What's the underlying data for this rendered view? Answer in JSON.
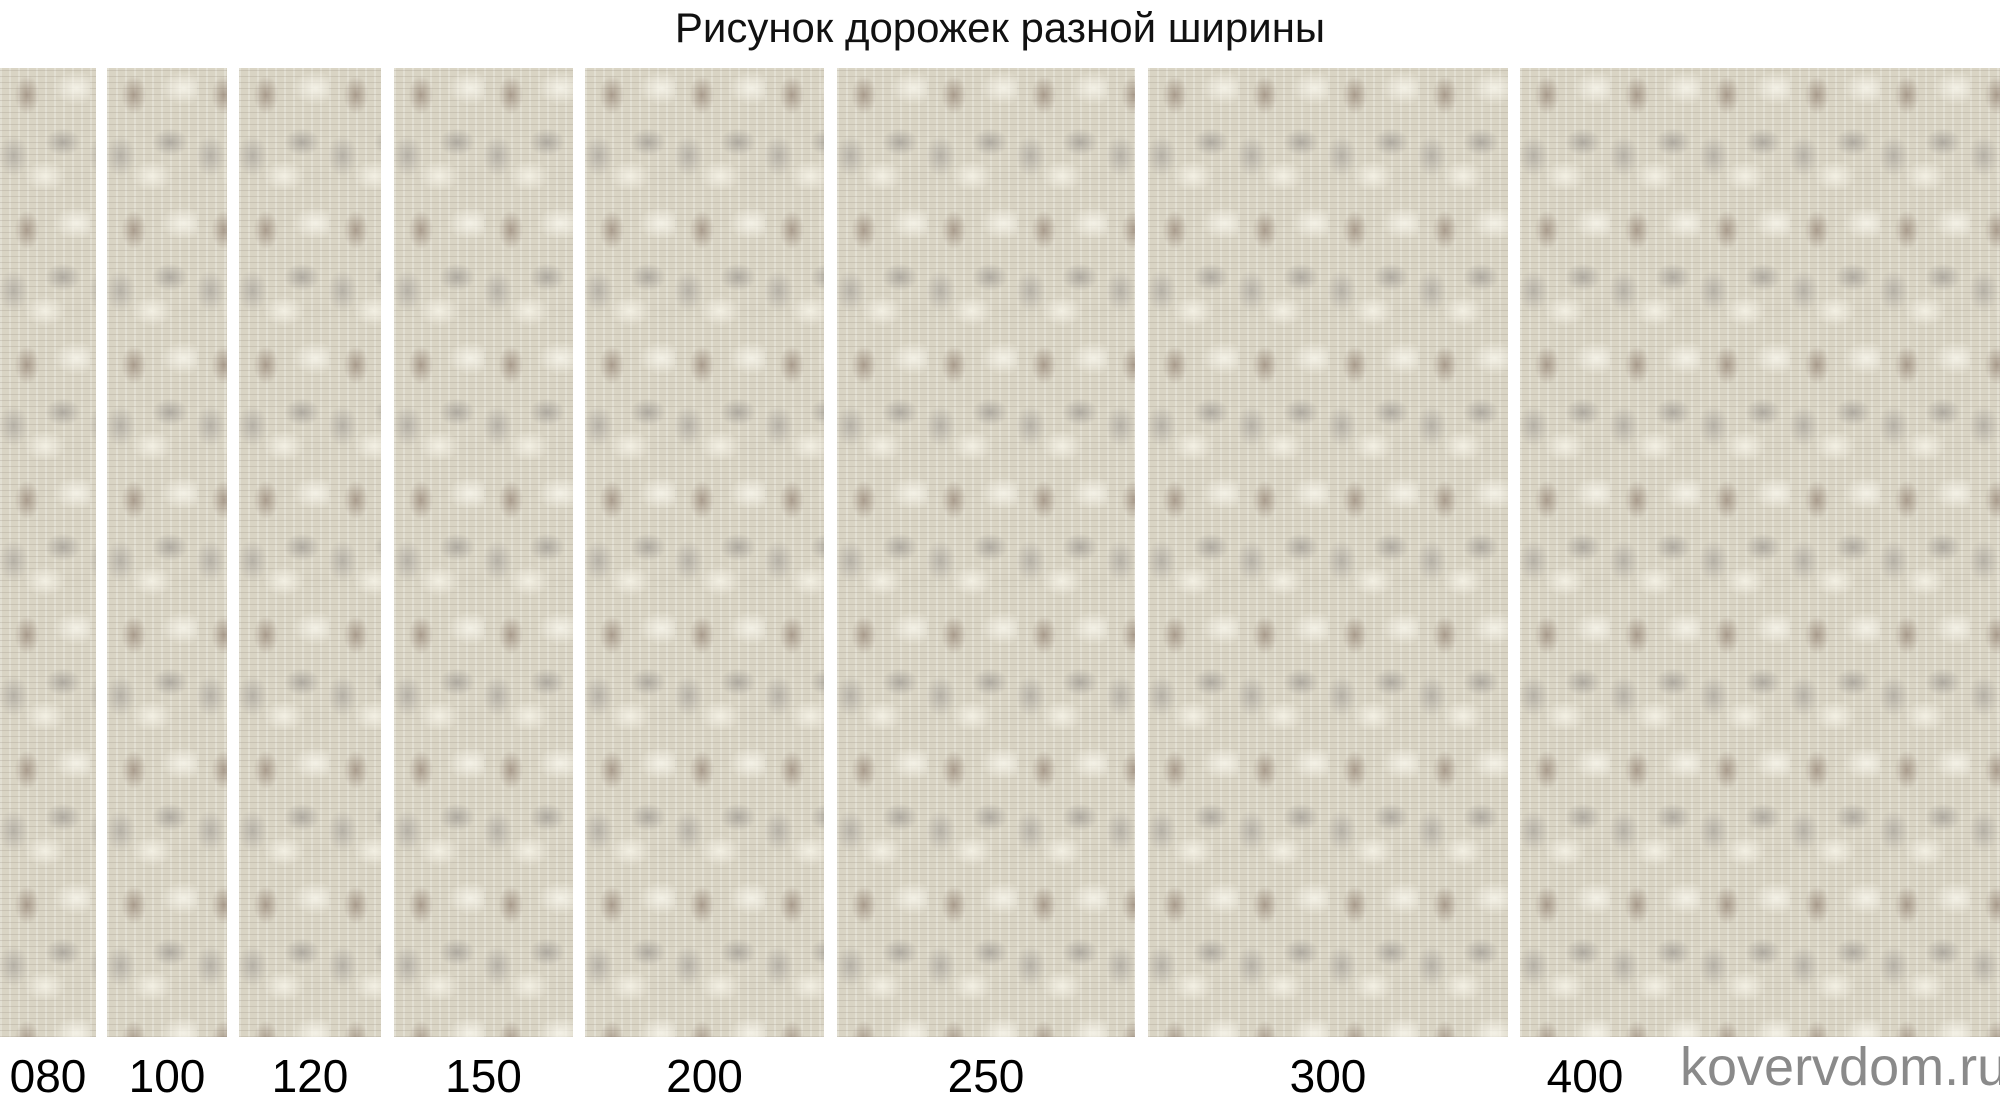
{
  "title": "Рисунок дорожек разной ширины",
  "panels": [
    {
      "label": "080"
    },
    {
      "label": "100"
    },
    {
      "label": "120"
    },
    {
      "label": "150"
    },
    {
      "label": "200"
    },
    {
      "label": "250"
    },
    {
      "label": "300"
    },
    {
      "label": "400"
    }
  ],
  "watermark": "kovervdom.ru"
}
